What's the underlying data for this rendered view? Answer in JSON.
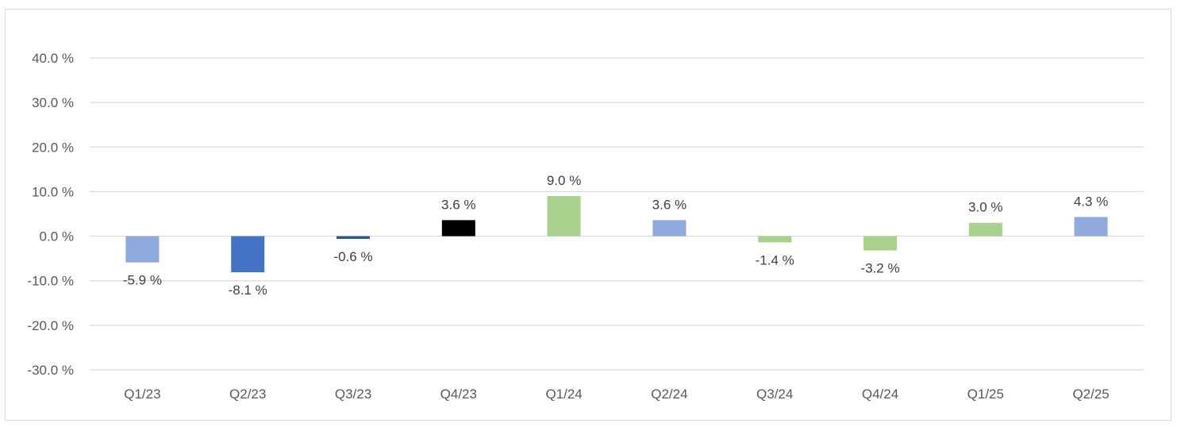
{
  "chart_data": {
    "type": "bar",
    "title": "",
    "xlabel": "",
    "ylabel": "",
    "categories": [
      "Q1/23",
      "Q2/23",
      "Q3/23",
      "Q4/23",
      "Q1/24",
      "Q2/24",
      "Q3/24",
      "Q4/24",
      "Q1/25",
      "Q2/25"
    ],
    "values": [
      -5.9,
      -8.1,
      -0.6,
      3.6,
      9.0,
      3.6,
      -1.4,
      -3.2,
      3.0,
      4.3
    ],
    "data_labels": [
      "-5.9 %",
      "-8.1 %",
      "-0.6 %",
      "3.6 %",
      "9.0 %",
      "3.6 %",
      "-1.4 %",
      "-3.2 %",
      "3.0 %",
      "4.3 %"
    ],
    "bar_colors": [
      "#8faadc",
      "#4472c4",
      "#2f5597",
      "#000000",
      "#a9d18e",
      "#8faadc",
      "#a9d18e",
      "#a9d18e",
      "#a9d18e",
      "#8faadc"
    ],
    "ylim": [
      -30,
      40
    ],
    "yticks": [
      40,
      30,
      20,
      10,
      0,
      -10,
      -20,
      -30
    ],
    "ytick_labels": [
      "40.0 %",
      "30.0 %",
      "20.0 %",
      "10.0 %",
      "0.0 %",
      "-10.0 %",
      "-20.0 %",
      "-30.0 %"
    ],
    "grid": true,
    "legend": "none",
    "colors": {
      "gridline": "#d9d9d9",
      "tick_text": "#595959",
      "label_text": "#404040"
    }
  }
}
